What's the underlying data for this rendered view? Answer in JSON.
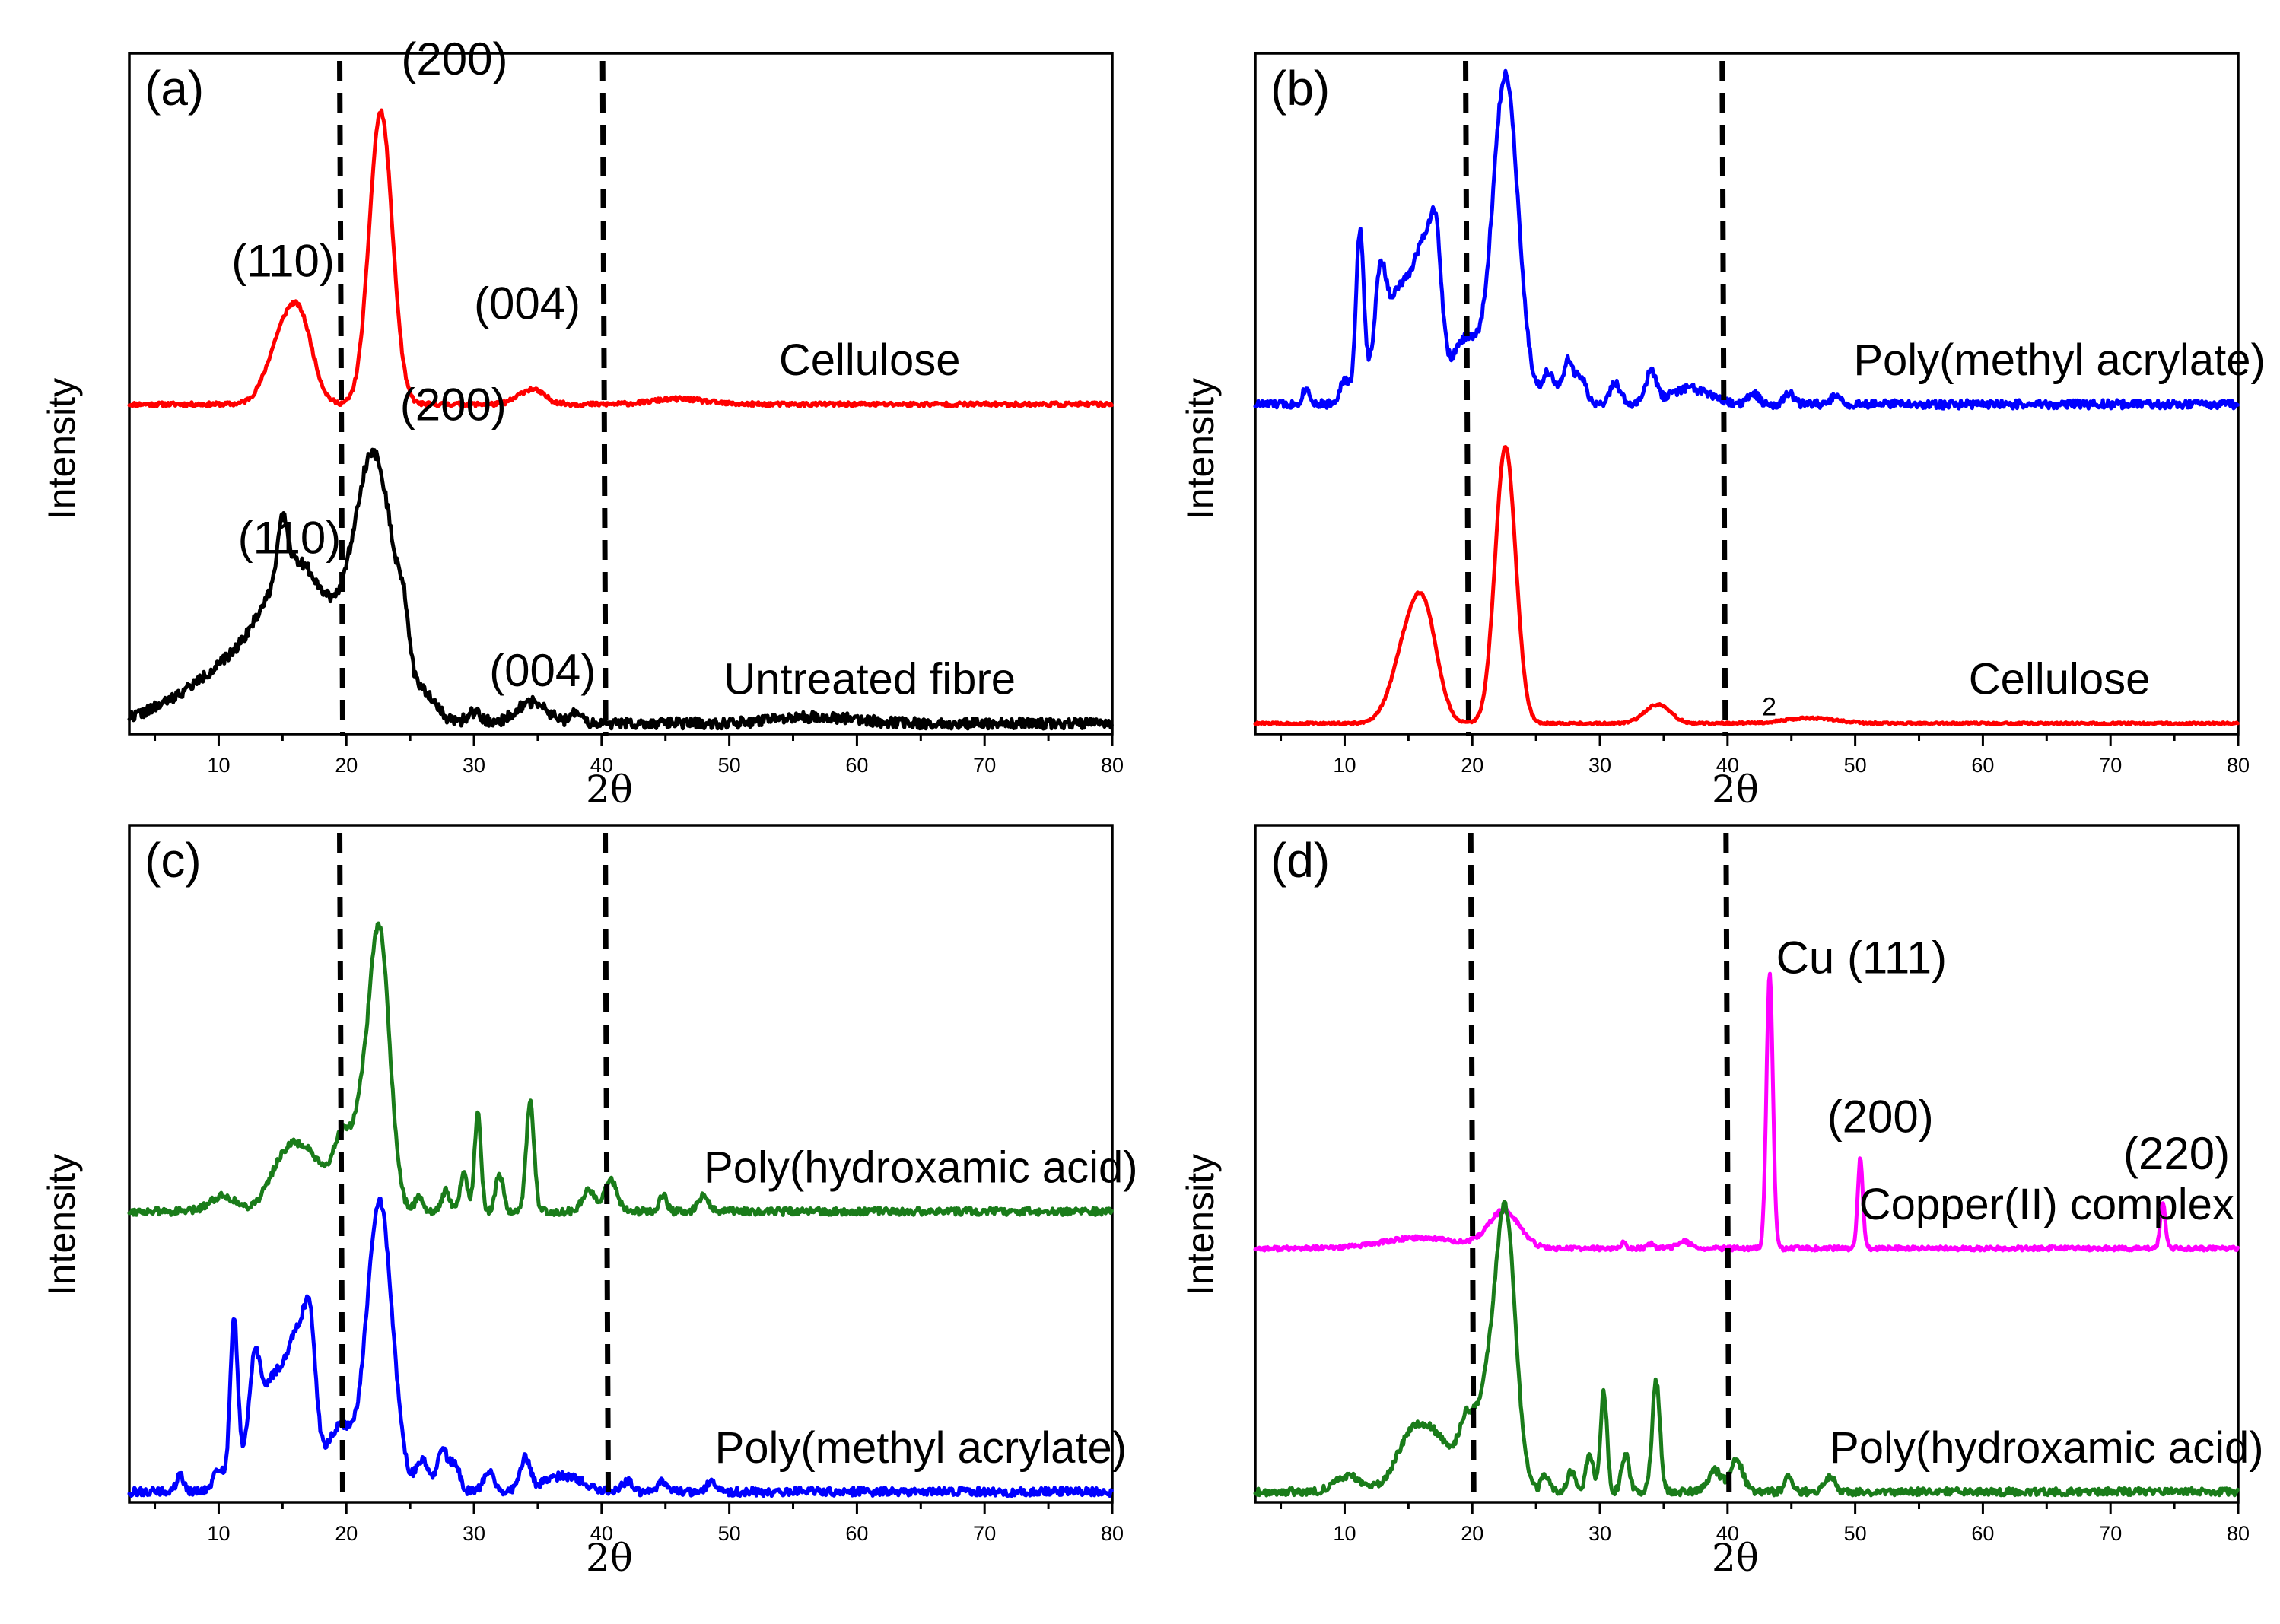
{
  "chart_data": [
    {
      "panel": "(a)",
      "type": "line",
      "xlabel": "2θ",
      "ylabel": "Intensity",
      "xlim": [
        3,
        80
      ],
      "xticks": [
        10,
        20,
        30,
        40,
        50,
        60,
        70,
        80
      ],
      "dashed_lines_x": [
        19.6,
        40.2
      ],
      "series": [
        {
          "name": "Cellulose",
          "color": "#ff0000",
          "base": 0.62,
          "noise": 0.004,
          "seed": 11,
          "peaks": [
            [
              15.0,
              0.12,
              1.2
            ],
            [
              16.5,
              0.12,
              1.0
            ],
            [
              22.7,
              0.55,
              0.9
            ],
            [
              34.5,
              0.028,
              1.0
            ],
            [
              46.0,
              0.01,
              2.0
            ]
          ],
          "label_x": 61
        },
        {
          "name": "Untreated fibre",
          "color": "#000000",
          "base": 0.02,
          "noise": 0.01,
          "seed": 22,
          "peaks": [
            [
              12.5,
              0.12,
              4.5
            ],
            [
              15.0,
              0.1,
              0.4
            ],
            [
              16.5,
              0.22,
              2.5
            ],
            [
              22.2,
              0.48,
              1.6
            ],
            [
              24.5,
              0.08,
              0.4
            ],
            [
              26.5,
              0.04,
              0.8
            ],
            [
              30.0,
              0.02,
              0.6
            ],
            [
              34.5,
              0.04,
              1.2
            ],
            [
              38.0,
              0.02,
              0.4
            ],
            [
              57.0,
              0.012,
              3.0
            ]
          ],
          "label_x": 61
        }
      ],
      "annotations": [
        {
          "text": "(110)",
          "x": 11.0,
          "y": 0.86
        },
        {
          "text": "(200)",
          "x": 24.3,
          "y": 1.24
        },
        {
          "text": "(004)",
          "x": 30.0,
          "y": 0.78
        },
        {
          "text": "(110)",
          "x": 11.5,
          "y": 0.34
        },
        {
          "text": "(200)",
          "x": 24.2,
          "y": 0.59
        },
        {
          "text": "(004)",
          "x": 31.2,
          "y": 0.09
        }
      ]
    },
    {
      "panel": "(b)",
      "type": "line",
      "xlabel": "2θ",
      "ylabel": "Intensity",
      "xlim": [
        3,
        80
      ],
      "xticks": [
        10,
        20,
        30,
        40,
        50,
        60,
        70,
        80
      ],
      "dashed_lines_x": [
        19.6,
        39.7
      ],
      "series": [
        {
          "name": "Poly(methyl acrylate)",
          "color": "#0000ff",
          "base": 0.62,
          "noise": 0.008,
          "seed": 33,
          "peaks": [
            [
              7.0,
              0.03,
              0.3
            ],
            [
              10.0,
              0.04,
              0.4
            ],
            [
              11.2,
              0.3,
              0.3
            ],
            [
              12.8,
              0.14,
              0.4
            ],
            [
              14.5,
              0.22,
              1.6
            ],
            [
              16.5,
              0.2,
              0.8
            ],
            [
              17.2,
              0.15,
              0.4
            ],
            [
              19.5,
              0.12,
              1.0
            ],
            [
              22.6,
              0.62,
              1.0
            ],
            [
              26.0,
              0.06,
              0.5
            ],
            [
              27.5,
              0.08,
              0.4
            ],
            [
              28.5,
              0.05,
              0.4
            ],
            [
              31.2,
              0.04,
              0.4
            ],
            [
              34.0,
              0.06,
              0.4
            ],
            [
              37.0,
              0.03,
              1.5
            ],
            [
              42.0,
              0.02,
              0.4
            ],
            [
              44.8,
              0.02,
              0.4
            ],
            [
              48.5,
              0.02,
              0.3
            ]
          ],
          "label_x": 66
        },
        {
          "name": "Cellulose",
          "color": "#ff0000",
          "base": 0.02,
          "noise": 0.002,
          "seed": 44,
          "peaks": [
            [
              15.0,
              0.15,
              1.2
            ],
            [
              16.4,
              0.15,
              1.0
            ],
            [
              22.6,
              0.52,
              0.8
            ],
            [
              34.5,
              0.035,
              1.0
            ],
            [
              46.5,
              0.01,
              2.0
            ]
          ],
          "label_x": 66
        }
      ],
      "annotations": [
        {
          "text": "2",
          "x": 42.7,
          "y": 0.035,
          "small": true
        }
      ]
    },
    {
      "panel": "(c)",
      "type": "line",
      "xlabel": "2θ",
      "ylabel": "Intensity",
      "xlim": [
        3,
        80
      ],
      "xticks": [
        10,
        20,
        30,
        40,
        50,
        60,
        70,
        80
      ],
      "dashed_lines_x": [
        19.6,
        40.4
      ],
      "series": [
        {
          "name": "Poly(hydroxamic acid)",
          "color": "#1a7c1a",
          "base": 0.55,
          "noise": 0.007,
          "seed": 55,
          "peaks": [
            [
              10.3,
              0.03,
              1.0
            ],
            [
              15.0,
              0.07,
              1.2
            ],
            [
              17.0,
              0.1,
              1.5
            ],
            [
              19.5,
              0.1,
              0.6
            ],
            [
              21.0,
              0.15,
              0.8
            ],
            [
              22.6,
              0.52,
              0.8
            ],
            [
              25.7,
              0.03,
              0.3
            ],
            [
              27.8,
              0.04,
              0.3
            ],
            [
              29.2,
              0.07,
              0.3
            ],
            [
              30.3,
              0.19,
              0.25
            ],
            [
              32.0,
              0.07,
              0.3
            ],
            [
              34.4,
              0.21,
              0.3
            ],
            [
              39.0,
              0.04,
              0.5
            ],
            [
              40.7,
              0.06,
              0.5
            ],
            [
              44.8,
              0.03,
              0.3
            ],
            [
              48.0,
              0.03,
              0.4
            ]
          ],
          "label_x": 65
        },
        {
          "name": "Poly(methyl acrylate)",
          "color": "#0000ff",
          "base": 0.02,
          "noise": 0.008,
          "seed": 66,
          "peaks": [
            [
              7.0,
              0.03,
              0.3
            ],
            [
              10.0,
              0.04,
              0.4
            ],
            [
              11.2,
              0.3,
              0.3
            ],
            [
              12.8,
              0.14,
              0.4
            ],
            [
              14.5,
              0.22,
              1.6
            ],
            [
              16.5,
              0.2,
              0.8
            ],
            [
              17.2,
              0.15,
              0.4
            ],
            [
              19.5,
              0.12,
              1.0
            ],
            [
              22.6,
              0.55,
              1.0
            ],
            [
              26.0,
              0.06,
              0.5
            ],
            [
              27.5,
              0.08,
              0.4
            ],
            [
              28.5,
              0.05,
              0.4
            ],
            [
              31.2,
              0.04,
              0.4
            ],
            [
              34.0,
              0.06,
              0.4
            ],
            [
              37.0,
              0.03,
              1.5
            ],
            [
              42.0,
              0.02,
              0.4
            ],
            [
              44.8,
              0.02,
              0.4
            ],
            [
              48.5,
              0.02,
              0.3
            ]
          ],
          "label_x": 65
        }
      ],
      "annotations": []
    },
    {
      "panel": "(d)",
      "type": "line",
      "xlabel": "2θ",
      "ylabel": "Intensity",
      "xlim": [
        3,
        80
      ],
      "xticks": [
        10,
        20,
        30,
        40,
        50,
        60,
        70,
        80
      ],
      "dashed_lines_x": [
        20.0,
        40.0
      ],
      "series": [
        {
          "name": "Copper(II) complex",
          "color": "#ff00ff",
          "base": 0.48,
          "noise": 0.004,
          "seed": 77,
          "peaks": [
            [
              16.0,
              0.02,
              3.0
            ],
            [
              22.5,
              0.07,
              1.2
            ],
            [
              31.8,
              0.01,
              0.2
            ],
            [
              34.0,
              0.008,
              0.3
            ],
            [
              36.5,
              0.014,
              0.5
            ],
            [
              43.3,
              0.52,
              0.25
            ],
            [
              50.4,
              0.17,
              0.2
            ],
            [
              74.1,
              0.085,
              0.2
            ]
          ],
          "label_x": 65
        },
        {
          "name": "Poly(hydroxamic acid)",
          "color": "#1a7c1a",
          "base": 0.02,
          "noise": 0.007,
          "seed": 88,
          "peaks": [
            [
              10.3,
              0.03,
              1.0
            ],
            [
              15.0,
              0.07,
              1.2
            ],
            [
              17.0,
              0.1,
              1.5
            ],
            [
              19.5,
              0.1,
              0.6
            ],
            [
              21.0,
              0.15,
              0.8
            ],
            [
              22.6,
              0.52,
              0.8
            ],
            [
              25.7,
              0.03,
              0.3
            ],
            [
              27.8,
              0.04,
              0.3
            ],
            [
              29.2,
              0.07,
              0.3
            ],
            [
              30.3,
              0.19,
              0.25
            ],
            [
              32.0,
              0.07,
              0.3
            ],
            [
              34.4,
              0.21,
              0.3
            ],
            [
              39.0,
              0.04,
              0.5
            ],
            [
              40.7,
              0.06,
              0.5
            ],
            [
              44.8,
              0.03,
              0.3
            ],
            [
              48.0,
              0.03,
              0.4
            ]
          ],
          "label_x": 65
        }
      ],
      "annotations": [
        {
          "text": "Cu (111)",
          "x": 43.8,
          "y": 1.0
        },
        {
          "text": "(200)",
          "x": 47.8,
          "y": 0.7
        },
        {
          "text": "(220)",
          "x": 71.0,
          "y": 0.63
        }
      ]
    }
  ]
}
